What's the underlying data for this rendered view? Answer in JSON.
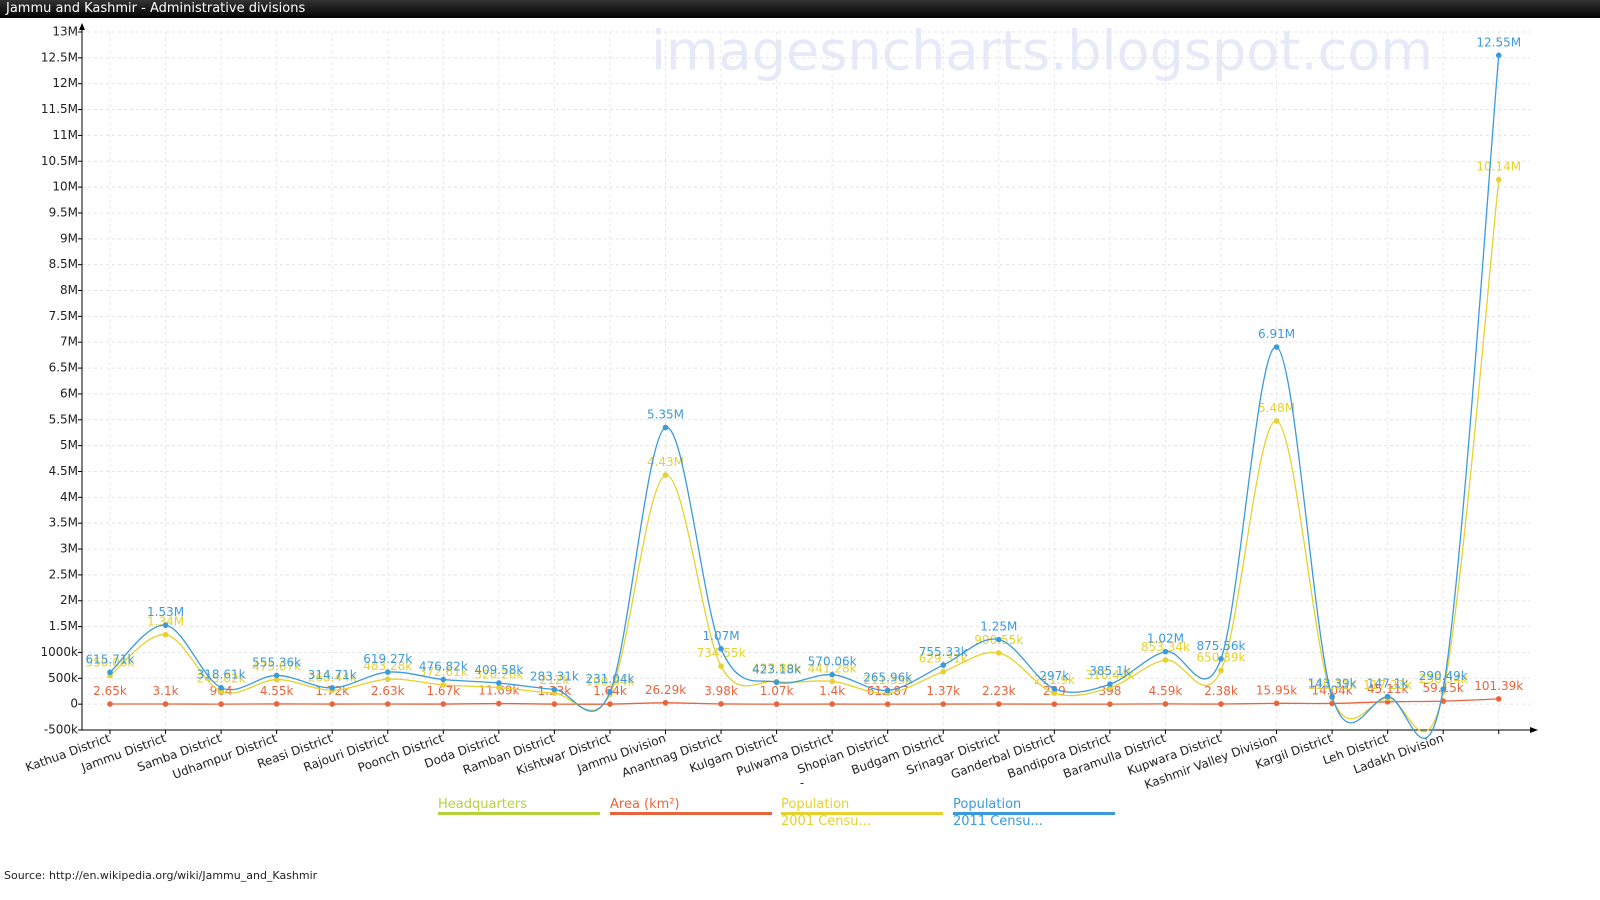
{
  "chart_data": {
    "type": "line",
    "title": "Jammu and Kashmir - Administrative divisions",
    "watermark": "imagesncharts.blogspot.com",
    "source": "Source: http://en.wikipedia.org/wiki/Jammu_and_Kashmir",
    "xlabel": "-",
    "categories": [
      "Kathua District",
      "Jammu District",
      "Samba District",
      "Udhampur District",
      "Reasi District",
      "Rajouri District",
      "Poonch District",
      "Doda District",
      "Ramban District",
      "Kishtwar District",
      "Jammu Division",
      "Anantnag District",
      "Kulgam District",
      "Pulwama District",
      "Shopian District",
      "Budgam District",
      "Srinagar District",
      "Ganderbal District",
      "Bandipora District",
      "Baramulla District",
      "Kupwara District",
      "Kashmir Valley Division",
      "Kargil District",
      "Leh District",
      "Ladakh Division",
      null
    ],
    "ylim": [
      -500000,
      13000000
    ],
    "yticks": [
      {
        "value": -500000,
        "label": "-500k"
      },
      0,
      {
        "value": 500000,
        "label": "500k"
      },
      {
        "value": 1000000,
        "label": "1000k"
      },
      {
        "value": 1500000,
        "label": "1.5M"
      },
      {
        "value": 2000000,
        "label": "2M"
      },
      {
        "value": 2500000,
        "label": "2.5M"
      },
      {
        "value": 3000000,
        "label": "3M"
      },
      {
        "value": 3500000,
        "label": "3.5M"
      },
      {
        "value": 4000000,
        "label": "4M"
      },
      {
        "value": 4500000,
        "label": "4.5M"
      },
      {
        "value": 5000000,
        "label": "5M"
      },
      {
        "value": 5500000,
        "label": "5.5M"
      },
      {
        "value": 6000000,
        "label": "6M"
      },
      {
        "value": 6500000,
        "label": "6.5M"
      },
      {
        "value": 7000000,
        "label": "7M"
      },
      {
        "value": 7500000,
        "label": "7.5M"
      },
      {
        "value": 8000000,
        "label": "8M"
      },
      {
        "value": 8500000,
        "label": "8.5M"
      },
      {
        "value": 9000000,
        "label": "9M"
      },
      {
        "value": 9500000,
        "label": "9.5M"
      },
      {
        "value": 10000000,
        "label": "10M"
      },
      {
        "value": 10500000,
        "label": "10.5M"
      },
      {
        "value": 11000000,
        "label": "11M"
      },
      {
        "value": 11500000,
        "label": "11.5M"
      },
      {
        "value": 12000000,
        "label": "12M"
      },
      {
        "value": 12500000,
        "label": "12.5M"
      },
      {
        "value": 13000000,
        "label": "13M"
      }
    ],
    "grid": true,
    "series": [
      {
        "name": "Headquarters",
        "color": "#b4d23c",
        "values": [
          null,
          null,
          null,
          null,
          null,
          null,
          null,
          null,
          null,
          null,
          null,
          null,
          null,
          null,
          null,
          null,
          null,
          null,
          null,
          null,
          null,
          null,
          null,
          null,
          null,
          null
        ]
      },
      {
        "name": "Area (km²)",
        "color": "#e8643c",
        "values": [
          2651,
          3097,
          904,
          4550,
          1719,
          2630,
          1674,
          11691,
          1330,
          1644,
          26293,
          3984,
          1067,
          1398,
          612.87,
          1371,
          2228,
          259,
          398,
          4588,
          2379,
          15948,
          14036,
          45110,
          59146,
          101387
        ],
        "value_labels": [
          "2.65k",
          "3.1k",
          "904",
          "4.55k",
          "1.72k",
          "2.63k",
          "1.67k",
          "11.69k",
          "1.33k",
          "1.64k",
          "26.29k",
          "3.98k",
          "1.07k",
          "1.4k",
          "612.87",
          "1.37k",
          "2.23k",
          "259",
          "398",
          "4.59k",
          "2.38k",
          "15.95k",
          "14.04k",
          "45.11k",
          "59.15k",
          "101.39k"
        ]
      },
      {
        "name": "Population\n2001 Censu...",
        "color": "#e6d22e",
        "values": [
          550084,
          1343756,
          245016,
          475068,
          268441,
          483284,
          372613,
          320256,
          212000,
          190843,
          4430191,
          734549,
          437885,
          441275,
          211332,
          629309,
          990548,
          211899,
          316436,
          853344,
          650393,
          5476970,
          119307,
          117232,
          236539,
          10143700
        ],
        "value_labels": [
          "550.08k",
          "1.34M",
          "245.02k",
          "475.07k",
          "268.44k",
          "483.28k",
          "372.61k",
          "320.26k",
          "212k",
          "190.84k",
          "4.43M",
          "734.55k",
          "437.89k",
          "441.28k",
          "211.33k",
          "629.31k",
          "990.55k",
          "211.9k",
          "316.44k",
          "853.34k",
          "650.39k",
          "5.48M",
          "119.31k",
          "117.23k",
          "236.54k",
          "10.14M"
        ]
      },
      {
        "name": "Population\n2011 Censu...",
        "color": "#3c9ada",
        "values": [
          615711,
          1526406,
          318611,
          555357,
          314714,
          619266,
          476820,
          409576,
          283313,
          231037,
          5350811,
          1070144,
          423181,
          570060,
          265960,
          755331,
          1250173,
          297003,
          385099,
          1015503,
          875564,
          6907622,
          143388,
          147104,
          290492,
          12548926
        ],
        "value_labels": [
          "615.71k",
          "1.53M",
          "318.61k",
          "555.36k",
          "314.71k",
          "619.27k",
          "476.82k",
          "409.58k",
          "283.31k",
          "231.04k",
          "5.35M",
          "1.07M",
          "423.18k",
          "570.06k",
          "265.96k",
          "755.33k",
          "1.25M",
          "297k",
          "385.1k",
          "1.02M",
          "875.56k",
          "6.91M",
          "143.39k",
          "147.1k",
          "290.49k",
          "12.55M"
        ]
      }
    ]
  }
}
